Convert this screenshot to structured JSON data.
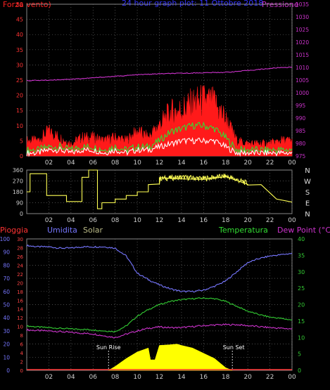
{
  "colors": {
    "background": "#000000",
    "wind_speed": "#ff1a1a",
    "wind_avg": "#33dd33",
    "wind_min": "#ffffff",
    "pressure": "#cc33cc",
    "direction": "#ffff55",
    "umidita": "#7777ff",
    "temperatura": "#33cc33",
    "dew_point": "#cc33cc",
    "solar": "#ffff00",
    "pioggia": "#ff3333",
    "grid": "#666666",
    "axis_text": "#cccccc"
  },
  "chart_data": [
    {
      "type": "line",
      "id": "wind-pressure",
      "title": "24 hour graph plot: 11 Ottobre 2018",
      "ylabel_left": "Forza vento)",
      "ylabel_right": "Pressione",
      "ylim_left": [
        0,
        50
      ],
      "ylim_right": [
        975,
        1035
      ],
      "yticks_left": [
        "0",
        "5",
        "10",
        "15",
        "20",
        "25",
        "30",
        "35",
        "40",
        "45",
        "50"
      ],
      "yticks_right": [
        "975",
        "980",
        "985",
        "990",
        "995",
        "1000",
        "1005",
        "1010",
        "1015",
        "1020",
        "1025",
        "1030",
        "1035"
      ],
      "xticks": [
        "02",
        "04",
        "06",
        "08",
        "10",
        "12",
        "14",
        "16",
        "18",
        "20",
        "22",
        "00"
      ],
      "grid": true,
      "series": [
        {
          "name": "Pressione",
          "x": [
            0,
            1,
            2,
            3,
            4,
            5,
            6,
            7,
            8,
            9,
            10,
            11,
            12,
            13,
            14,
            15,
            16,
            17,
            18,
            19,
            20,
            21,
            22,
            23,
            24
          ],
          "values": [
            1004.8,
            1004.9,
            1005.0,
            1005.2,
            1005.4,
            1005.6,
            1005.9,
            1006.2,
            1006.5,
            1006.8,
            1007.1,
            1007.3,
            1007.5,
            1007.6,
            1007.7,
            1007.8,
            1007.9,
            1008.0,
            1008.1,
            1008.4,
            1008.8,
            1009.2,
            1009.6,
            1010.0,
            1010.1
          ]
        },
        {
          "name": "Wind gust",
          "x": [
            0,
            1,
            2,
            3,
            4,
            5,
            6,
            7,
            8,
            9,
            10,
            11,
            12,
            13,
            14,
            15,
            16,
            17,
            18,
            19,
            20,
            21,
            22,
            23,
            24
          ],
          "values": [
            5,
            5,
            8,
            6,
            4,
            6,
            6,
            5,
            6,
            5,
            8,
            6,
            10,
            14,
            15,
            17,
            18,
            17,
            12,
            5,
            4,
            4,
            4,
            5,
            5
          ]
        },
        {
          "name": "Wind average",
          "x": [
            0,
            1,
            2,
            3,
            4,
            5,
            6,
            7,
            8,
            9,
            10,
            11,
            12,
            13,
            14,
            15,
            16,
            17,
            18,
            19,
            20,
            21,
            22,
            23,
            24
          ],
          "values": [
            2,
            2,
            3,
            3,
            2,
            3,
            3,
            2,
            3,
            2,
            3,
            3,
            5,
            8,
            9,
            10,
            10,
            9,
            6,
            2,
            2,
            2,
            2,
            2,
            2
          ]
        },
        {
          "name": "Wind min",
          "x": [
            0,
            1,
            2,
            3,
            4,
            5,
            6,
            7,
            8,
            9,
            10,
            11,
            12,
            13,
            14,
            15,
            16,
            17,
            18,
            19,
            20,
            21,
            22,
            23,
            24
          ],
          "values": [
            1,
            1,
            2,
            2,
            1,
            2,
            2,
            1,
            2,
            1,
            2,
            2,
            3,
            4,
            5,
            5,
            5,
            5,
            3,
            1,
            1,
            1,
            1,
            1,
            1
          ]
        }
      ]
    },
    {
      "type": "line",
      "id": "wind-direction",
      "ylim": [
        0,
        360
      ],
      "yticks": [
        "0",
        "90",
        "180",
        "270",
        "360"
      ],
      "compass_labels": [
        "N",
        "W",
        "S",
        "E",
        "N"
      ],
      "xticks": [
        "02",
        "04",
        "06",
        "08",
        "10",
        "12",
        "14",
        "16",
        "18",
        "20",
        "22",
        "00"
      ],
      "grid": true,
      "series": [
        {
          "name": "Direction",
          "x": [
            0,
            0.3,
            0.3,
            1.8,
            1.8,
            3.6,
            3.6,
            4.7,
            4.7,
            5.0,
            5.0,
            5.6,
            5.6,
            6.4,
            6.4,
            6.8,
            6.8,
            8.0,
            8.0,
            9.0,
            9.0,
            10.0,
            10.0,
            11.0,
            11.0,
            12.0,
            12.0,
            14.0,
            16.0,
            18.0,
            20.0,
            20.0,
            21.2,
            21.2,
            22.6,
            22.6,
            24.0
          ],
          "values": [
            180,
            180,
            330,
            330,
            150,
            150,
            100,
            100,
            100,
            100,
            300,
            300,
            360,
            360,
            40,
            40,
            90,
            90,
            120,
            120,
            150,
            150,
            180,
            180,
            240,
            240,
            290,
            300,
            290,
            310,
            250,
            250,
            240,
            240,
            120,
            120,
            95
          ]
        }
      ]
    },
    {
      "type": "line",
      "id": "humidity-temperature",
      "legend": [
        "Pioggia",
        "Umidita",
        "Solar",
        "Temperatura",
        "Dew Point (°C)"
      ],
      "ylim_left": [
        0,
        100
      ],
      "ylim_left2": [
        0,
        30
      ],
      "ylim_right": [
        0,
        40
      ],
      "yticks_left": [
        "0",
        "10",
        "20",
        "30",
        "40",
        "50",
        "60",
        "70",
        "80",
        "90",
        "100"
      ],
      "yticks_left2": [
        "0",
        "2",
        "4",
        "6",
        "8",
        "10",
        "12",
        "14",
        "16",
        "18",
        "20",
        "22",
        "24",
        "26",
        "28",
        "30"
      ],
      "yticks_right": [
        "0",
        "5",
        "10",
        "15",
        "20",
        "25",
        "30",
        "35",
        "40"
      ],
      "xticks": [
        "02",
        "04",
        "06",
        "08",
        "10",
        "12",
        "14",
        "16",
        "18",
        "20",
        "22",
        "00"
      ],
      "annotations": [
        "Sun Rise",
        "Sun Set"
      ],
      "sunrise_hour": 7.4,
      "sunset_hour": 18.6,
      "grid": true,
      "series": [
        {
          "name": "Umidita",
          "x": [
            0,
            1,
            2,
            3,
            4,
            5,
            6,
            7,
            8,
            9,
            10,
            11,
            12,
            13,
            14,
            15,
            16,
            17,
            18,
            19,
            20,
            21,
            22,
            23,
            24
          ],
          "values": [
            95,
            94,
            94,
            93,
            93,
            94,
            94,
            94,
            93,
            87,
            74,
            69,
            65,
            62,
            60,
            60,
            61,
            64,
            68,
            75,
            82,
            85,
            87,
            88,
            89
          ]
        },
        {
          "name": "Temperatura",
          "x": [
            0,
            1,
            2,
            3,
            4,
            5,
            6,
            7,
            8,
            9,
            10,
            11,
            12,
            13,
            14,
            15,
            16,
            17,
            18,
            19,
            20,
            21,
            22,
            23,
            24
          ],
          "values": [
            13.5,
            13.2,
            13.0,
            12.8,
            12.6,
            12.5,
            12.3,
            12.0,
            11.8,
            13.5,
            16.5,
            18.5,
            20.0,
            21.0,
            21.5,
            21.8,
            22.0,
            21.8,
            21.0,
            19.5,
            18.0,
            17.0,
            16.2,
            15.8,
            15.3
          ]
        },
        {
          "name": "Dew Point",
          "x": [
            0,
            1,
            2,
            3,
            4,
            5,
            6,
            7,
            8,
            9,
            10,
            11,
            12,
            13,
            14,
            15,
            16,
            17,
            18,
            19,
            20,
            21,
            22,
            23,
            24
          ],
          "values": [
            12.3,
            12.1,
            12.0,
            11.8,
            11.5,
            11.3,
            11.1,
            10.5,
            10.0,
            11.0,
            12.0,
            12.8,
            13.2,
            13.0,
            13.0,
            13.3,
            13.6,
            13.8,
            13.9,
            13.9,
            13.6,
            13.3,
            13.0,
            12.8,
            12.6
          ]
        },
        {
          "name": "Solar",
          "x": [
            7.4,
            8,
            9,
            10,
            11,
            11.2,
            11.6,
            12,
            13,
            13.6,
            14,
            15,
            16,
            17,
            18,
            18.6
          ],
          "values": [
            0,
            3,
            9,
            14,
            17,
            8,
            8,
            19,
            19.5,
            20,
            19,
            17,
            13,
            9,
            2,
            0
          ]
        },
        {
          "name": "Pioggia",
          "x": [
            0,
            24
          ],
          "values": [
            0,
            0
          ]
        }
      ]
    }
  ]
}
